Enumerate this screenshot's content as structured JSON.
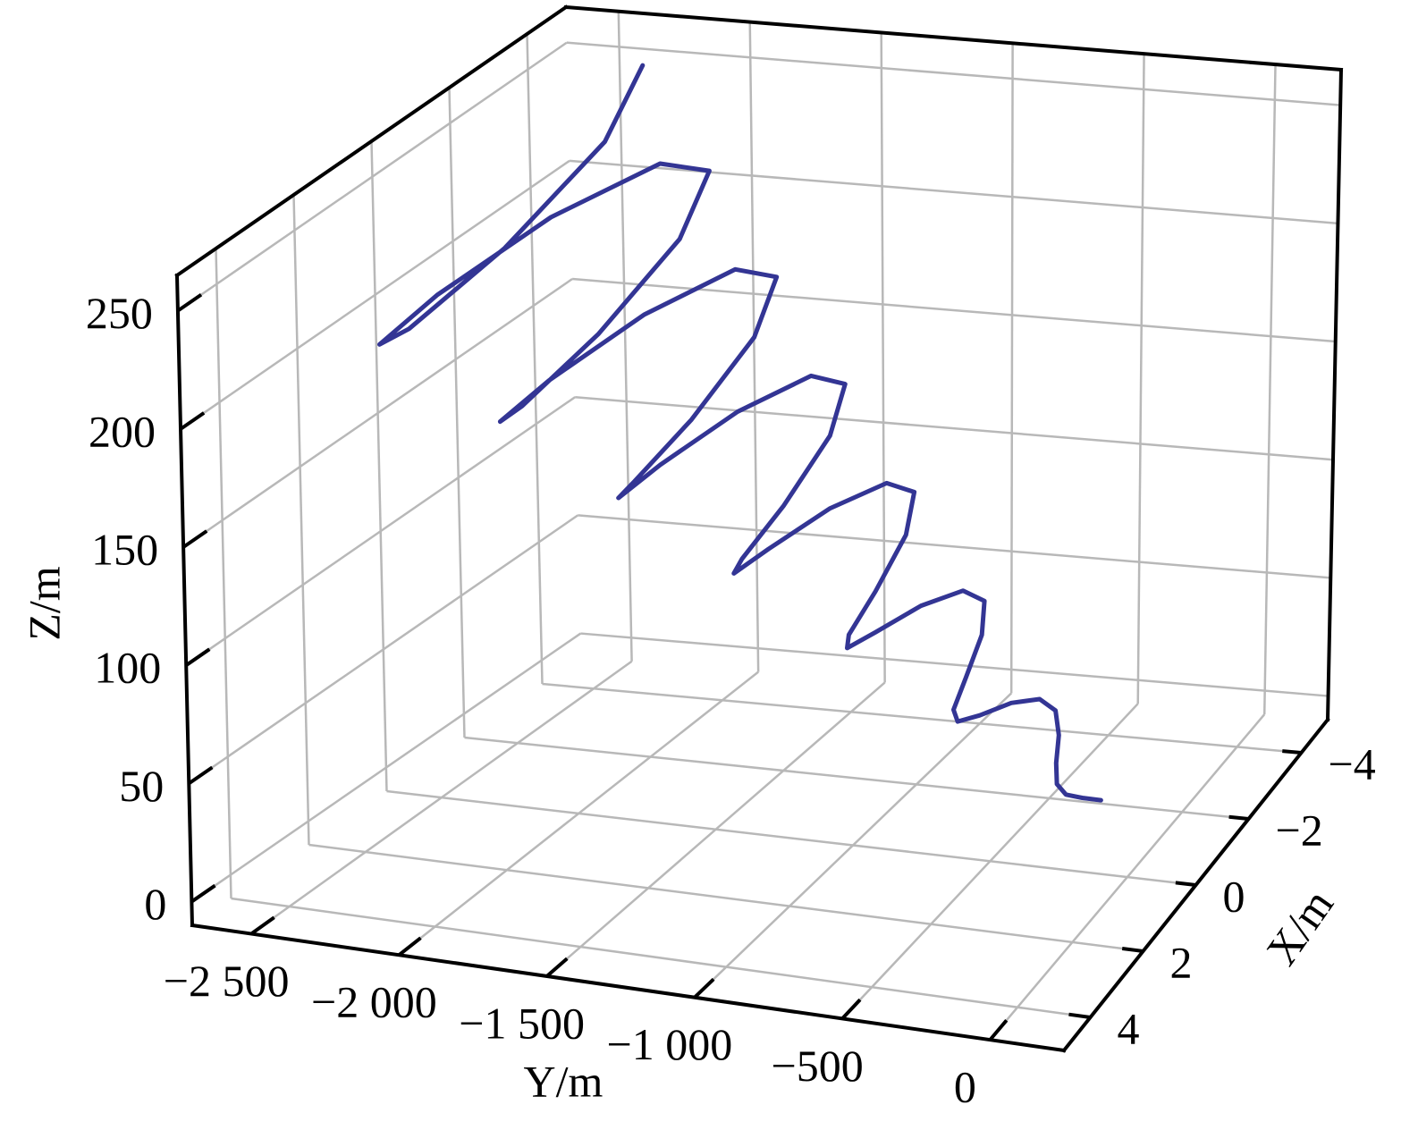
{
  "chart_data": {
    "type": "line3d",
    "xlabel": "X/m",
    "ylabel": "Y/m",
    "zlabel": "Z/m",
    "xlim": [
      -5,
      5
    ],
    "ylim": [
      -2700,
      250
    ],
    "zlim": [
      -10,
      265
    ],
    "xticks": [
      {
        "value": -4,
        "label": "−4"
      },
      {
        "value": -2,
        "label": "−2"
      },
      0,
      2,
      4
    ],
    "yticks": [
      {
        "value": -2500,
        "label": "−2 500"
      },
      {
        "value": -2000,
        "label": "−2 000"
      },
      {
        "value": -1500,
        "label": "−1 500"
      },
      {
        "value": -1000,
        "label": "−1 000"
      },
      {
        "value": -500,
        "label": "−500"
      },
      0
    ],
    "zticks": [
      0,
      50,
      100,
      150,
      200,
      250
    ],
    "grid": true,
    "series": [
      {
        "color": "#333594",
        "x": [
          0,
          0.27,
          0.45,
          0.37,
          0,
          -0.48,
          -0.75,
          -0.58,
          0,
          0.69,
          1.05,
          0.8,
          0,
          -0.9,
          -1.35,
          -1.01,
          0,
          1.11,
          1.65,
          1.22,
          0,
          -1.33,
          -1.95,
          -1.43,
          0,
          1.54,
          2.25,
          1.64,
          0,
          -1.75,
          -2.55,
          -1.86,
          0,
          1.96,
          2.85,
          2.07,
          0,
          -2.17,
          -3.15,
          -2.28,
          0,
          2.39,
          3.45,
          2.49,
          0,
          -2.6,
          -3.75,
          -2.7,
          0,
          2.81,
          4.05,
          2.92,
          0,
          -3.02,
          -4.35
        ],
        "y": [
          -100,
          -141,
          -182,
          -223,
          -264,
          -305,
          -346,
          -387,
          -429,
          -470,
          -511,
          -552,
          -593,
          -634,
          -675,
          -716,
          -757,
          -798,
          -839,
          -880,
          -921,
          -962,
          -1004,
          -1045,
          -1086,
          -1127,
          -1168,
          -1209,
          -1250,
          -1291,
          -1332,
          -1373,
          -1414,
          -1455,
          -1496,
          -1537,
          -1579,
          -1620,
          -1661,
          -1702,
          -1743,
          -1784,
          -1825,
          -1866,
          -1907,
          -1948,
          -1989,
          -2030,
          -2071,
          -2112,
          -2154,
          -2195,
          -2236,
          -2277,
          -2318
        ],
        "z": [
          21.2,
          25.3,
          28.6,
          31.4,
          34.7,
          39.5,
          45.7,
          52.3,
          57.9,
          61.3,
          62.9,
          64.0,
          66.6,
          72.1,
          80.0,
          88.3,
          94.6,
          97.3,
          97.1,
          96.5,
          98.5,
          104.7,
          114.3,
          124.3,
          131.3,
          133.3,
          131.4,
          129.1,
          130.4,
          137.3,
          148.6,
          160.3,
          167.9,
          169.3,
          165.7,
          161.7,
          162.3,
          169.9,
          182.9,
          196.3,
          204.6,
          205.3,
          200.0,
          194.3,
          194.2,
          202.5,
          217.1,
          232.3,
          241.3,
          241.2,
          234.3,
          226.9,
          226.1,
          235.1,
          251.4
        ]
      }
    ]
  }
}
